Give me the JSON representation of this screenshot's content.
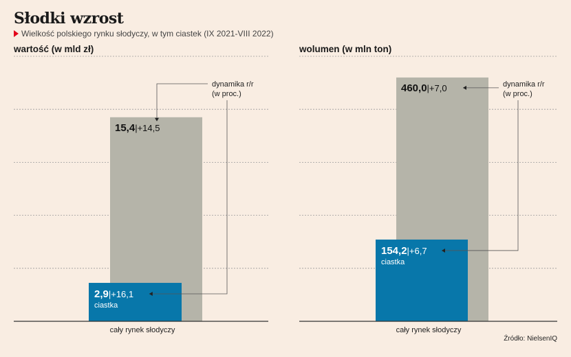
{
  "header": {
    "title": "Słodki wzrost",
    "subtitle": "Wielkość polskiego rynku słodyczy, w tym ciastek (IX 2021-VIII 2022)"
  },
  "source": "Źródło: NielsenIQ",
  "colors": {
    "background": "#f9ede2",
    "total": "#b5b4a9",
    "ciastka": "#0877aa",
    "accent": "#e3001b"
  },
  "chart_data": [
    {
      "type": "bar",
      "title": "wartość (w mld zł)",
      "xlabel": "cały rynek słodyczy",
      "ylim": [
        0,
        20
      ],
      "grid": true,
      "annotation": "dynamika r/r\n(w proc.)",
      "series": [
        {
          "name": "cały rynek słodyczy",
          "value": 15.4,
          "value_label": "15,4",
          "change_label": "+14,5"
        },
        {
          "name": "ciastka",
          "value": 2.9,
          "value_label": "2,9",
          "change_label": "+16,1"
        }
      ]
    },
    {
      "type": "bar",
      "title": "wolumen (w mln ton)",
      "xlabel": "cały rynek słodyczy",
      "ylim": [
        0,
        500
      ],
      "grid": true,
      "annotation": "dynamika r/r\n(w proc.)",
      "series": [
        {
          "name": "cały rynek słodyczy",
          "value": 460.0,
          "value_label": "460,0",
          "change_label": "+7,0"
        },
        {
          "name": "ciastka",
          "value": 154.2,
          "value_label": "154,2",
          "change_label": "+6,7"
        }
      ]
    }
  ]
}
